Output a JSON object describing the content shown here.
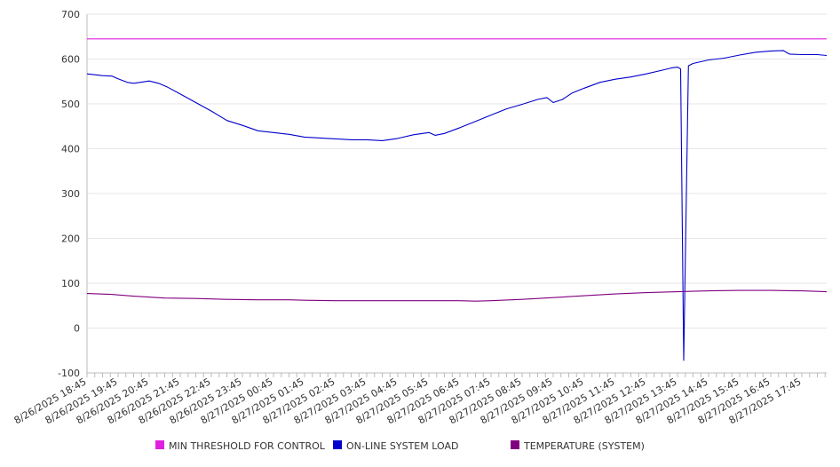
{
  "chart_data": {
    "type": "line",
    "title": "",
    "xlabel": "",
    "ylabel": "",
    "ylim": [
      -100,
      700
    ],
    "y_ticks": [
      -100,
      0,
      100,
      200,
      300,
      400,
      500,
      600,
      700
    ],
    "grid": true,
    "legend_position": "bottom",
    "categories": [
      "8/26/2025 18:45",
      "8/26/2025 19:45",
      "8/26/2025 20:45",
      "8/26/2025 21:45",
      "8/26/2025 22:45",
      "8/26/2025 23:45",
      "8/27/2025 00:45",
      "8/27/2025 01:45",
      "8/27/2025 02:45",
      "8/27/2025 03:45",
      "8/27/2025 04:45",
      "8/27/2025 05:45",
      "8/27/2025 06:45",
      "8/27/2025 07:45",
      "8/27/2025 08:45",
      "8/27/2025 09:45",
      "8/27/2025 10:45",
      "8/27/2025 11:45",
      "8/27/2025 12:45",
      "8/27/2025 13:45",
      "8/27/2025 14:45",
      "8/27/2025 15:45",
      "8/27/2025 16:45",
      "8/27/2025 17:45"
    ],
    "x_range_hours": [
      0,
      23.8
    ],
    "series": [
      {
        "name": "MIN THRESHOLD FOR CONTROL",
        "color": "#e020e0",
        "points": [
          [
            0,
            645
          ],
          [
            23.8,
            645
          ]
        ]
      },
      {
        "name": "ON-LINE SYSTEM LOAD",
        "color": "#0000cc",
        "points": [
          [
            0,
            567
          ],
          [
            0.5,
            563
          ],
          [
            0.8,
            562
          ],
          [
            1.0,
            556
          ],
          [
            1.3,
            548
          ],
          [
            1.5,
            546
          ],
          [
            1.8,
            549
          ],
          [
            2.0,
            551
          ],
          [
            2.3,
            546
          ],
          [
            2.6,
            537
          ],
          [
            3.0,
            522
          ],
          [
            3.5,
            503
          ],
          [
            4.0,
            484
          ],
          [
            4.5,
            463
          ],
          [
            5.0,
            452
          ],
          [
            5.5,
            440
          ],
          [
            6.0,
            436
          ],
          [
            6.5,
            432
          ],
          [
            7.0,
            426
          ],
          [
            7.5,
            424
          ],
          [
            8.0,
            422
          ],
          [
            8.5,
            420
          ],
          [
            9.0,
            420
          ],
          [
            9.5,
            418
          ],
          [
            10.0,
            423
          ],
          [
            10.5,
            431
          ],
          [
            11.0,
            436
          ],
          [
            11.2,
            430
          ],
          [
            11.5,
            434
          ],
          [
            12.0,
            447
          ],
          [
            12.5,
            461
          ],
          [
            13.0,
            475
          ],
          [
            13.5,
            489
          ],
          [
            14.0,
            499
          ],
          [
            14.5,
            510
          ],
          [
            14.8,
            514
          ],
          [
            15.0,
            503
          ],
          [
            15.3,
            510
          ],
          [
            15.6,
            524
          ],
          [
            16.0,
            535
          ],
          [
            16.5,
            548
          ],
          [
            17.0,
            555
          ],
          [
            17.5,
            560
          ],
          [
            18.0,
            567
          ],
          [
            18.5,
            575
          ],
          [
            18.8,
            580
          ],
          [
            19.0,
            582
          ],
          [
            19.1,
            578
          ],
          [
            19.2,
            -72
          ],
          [
            19.35,
            585
          ],
          [
            19.5,
            590
          ],
          [
            20.0,
            598
          ],
          [
            20.5,
            602
          ],
          [
            21.0,
            609
          ],
          [
            21.5,
            615
          ],
          [
            22.0,
            618
          ],
          [
            22.4,
            619
          ],
          [
            22.6,
            611
          ],
          [
            23.0,
            610
          ],
          [
            23.5,
            610
          ],
          [
            23.8,
            608
          ]
        ]
      },
      {
        "name": "TEMPERATURE (SYSTEM)",
        "color": "#800080",
        "points": [
          [
            0,
            77
          ],
          [
            0.8,
            75
          ],
          [
            1.5,
            71
          ],
          [
            2.5,
            67
          ],
          [
            3.5,
            66
          ],
          [
            4.5,
            64
          ],
          [
            5.5,
            63
          ],
          [
            6.5,
            63
          ],
          [
            7.0,
            62
          ],
          [
            8.0,
            61
          ],
          [
            9.0,
            61
          ],
          [
            10.0,
            61
          ],
          [
            11.0,
            61
          ],
          [
            12.0,
            61
          ],
          [
            12.5,
            60
          ],
          [
            13.0,
            61
          ],
          [
            14.0,
            64
          ],
          [
            15.0,
            68
          ],
          [
            16.0,
            72
          ],
          [
            17.0,
            76
          ],
          [
            18.0,
            79
          ],
          [
            19.0,
            81
          ],
          [
            20.0,
            83
          ],
          [
            21.0,
            84
          ],
          [
            22.0,
            84
          ],
          [
            23.0,
            83
          ],
          [
            23.8,
            81
          ]
        ]
      }
    ]
  }
}
